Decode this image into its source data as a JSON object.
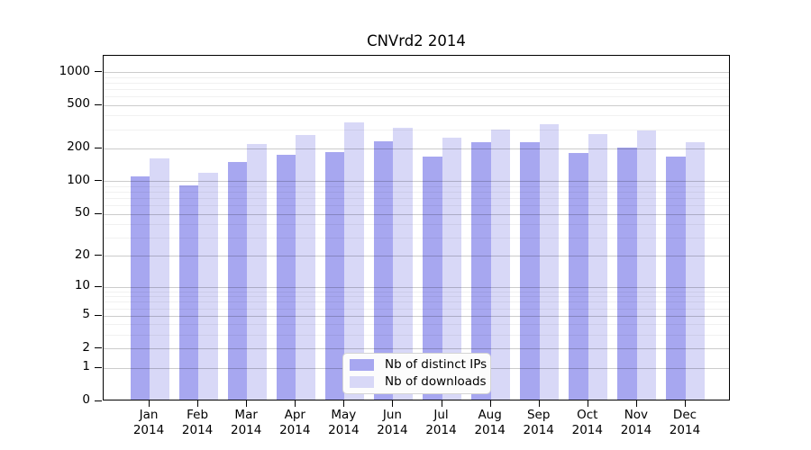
{
  "title": "CNVrd2 2014",
  "colors": {
    "distinct_ips": "#a7a7f0",
    "downloads": "#d8d8f7",
    "axis": "#000000",
    "grid_major": "#cccccc",
    "grid_minor": "#f0f0f0",
    "legend_bg": "#fcfcfc",
    "legend_border": "#d4d4d4"
  },
  "legend": {
    "items": [
      {
        "label": "Nb of distinct IPs",
        "color_key": "distinct_ips"
      },
      {
        "label": "Nb of downloads",
        "color_key": "downloads"
      }
    ]
  },
  "x_axis": {
    "months": [
      "Jan",
      "Feb",
      "Mar",
      "Apr",
      "May",
      "Jun",
      "Jul",
      "Aug",
      "Sep",
      "Oct",
      "Nov",
      "Dec"
    ],
    "year": "2014"
  },
  "y_axis": {
    "tick_values": [
      0,
      1,
      2,
      5,
      10,
      20,
      50,
      100,
      200,
      500,
      1000
    ]
  },
  "chart_data": {
    "type": "bar",
    "title": "CNVrd2 2014",
    "categories": [
      "Jan 2014",
      "Feb 2014",
      "Mar 2014",
      "Apr 2014",
      "May 2014",
      "Jun 2014",
      "Jul 2014",
      "Aug 2014",
      "Sep 2014",
      "Oct 2014",
      "Nov 2014",
      "Dec 2014"
    ],
    "series": [
      {
        "name": "Nb of distinct IPs",
        "color": "#a7a7f0",
        "values": [
          108,
          89,
          145,
          170,
          180,
          225,
          165,
          220,
          223,
          175,
          198,
          163
        ]
      },
      {
        "name": "Nb of downloads",
        "color": "#d8d8f7",
        "values": [
          158,
          116,
          215,
          260,
          335,
          300,
          245,
          290,
          325,
          265,
          285,
          220
        ]
      }
    ],
    "xlabel": "",
    "ylabel": "",
    "y_scale": "log1p",
    "y_tick_values": [
      0,
      1,
      2,
      5,
      10,
      20,
      50,
      100,
      200,
      500,
      1000
    ],
    "ylim": [
      0,
      1400
    ],
    "grid": true,
    "legend_position": "inside-bottom-center"
  }
}
